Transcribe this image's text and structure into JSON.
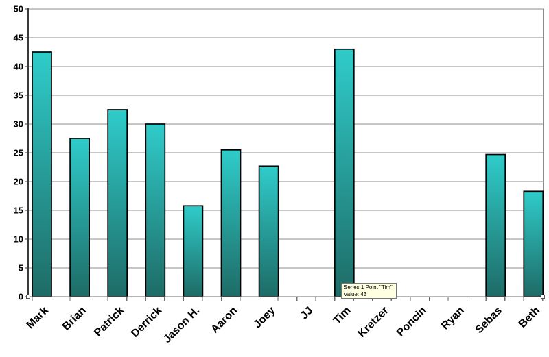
{
  "chart_data": {
    "type": "bar",
    "title": "",
    "xlabel": "",
    "ylabel": "",
    "series_name": "Series 1",
    "categories": [
      "Mark",
      "Brian",
      "Patrick",
      "Derrick",
      "Jason H.",
      "Aaron",
      "Joey",
      "JJ",
      "Tim",
      "Kretzer",
      "Poncin",
      "Ryan",
      "Sebas",
      "Beth"
    ],
    "values": [
      42.5,
      27.5,
      32.5,
      30,
      15.8,
      25.5,
      22.7,
      0,
      43,
      0,
      0,
      0,
      24.7,
      18.3
    ],
    "ylim": [
      0,
      50
    ],
    "ytick_step": 5,
    "grid": true,
    "legend": "none",
    "colors": {
      "bar_gradient_top": "#2FCCCA",
      "bar_gradient_bottom": "#1E6B66",
      "bar_border": "#000000",
      "gridline": "#8C8C8C",
      "y_axis": "#3A3A3A",
      "x_axis": "#6E6E6E",
      "plot_border": "#8C8C8C",
      "label_text": "#000000",
      "tooltip_bg": "#FFFFE1"
    }
  },
  "tooltip": {
    "line1": "Series 1 Point \"Tim\"",
    "line2": "Value: 43"
  }
}
